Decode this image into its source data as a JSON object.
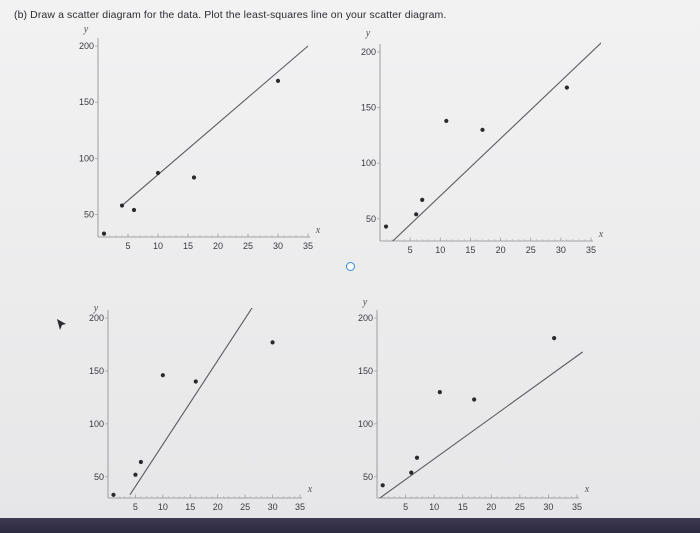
{
  "prompt": "(b) Draw a scatter diagram for the data. Plot the least-squares line on your scatter diagram.",
  "chart_data": [
    {
      "type": "scatter",
      "position": "top-left",
      "xlabel": "x",
      "ylabel": "y",
      "xlim": [
        0,
        35
      ],
      "ylim": [
        30,
        200
      ],
      "x_ticks": [
        5,
        10,
        15,
        20,
        25,
        30,
        35
      ],
      "y_ticks": [
        50,
        100,
        150,
        200
      ],
      "points": [
        [
          1,
          33
        ],
        [
          6,
          54
        ],
        [
          10,
          87
        ],
        [
          16,
          83
        ],
        [
          30,
          169
        ],
        [
          4,
          58
        ]
      ],
      "line": [
        [
          4,
          58
        ],
        [
          35,
          200
        ]
      ]
    },
    {
      "type": "scatter",
      "position": "top-right",
      "xlabel": "x",
      "ylabel": "y",
      "xlim": [
        0,
        35
      ],
      "ylim": [
        30,
        200
      ],
      "x_ticks": [
        5,
        10,
        15,
        20,
        25,
        30,
        35
      ],
      "y_ticks": [
        50,
        100,
        150,
        200
      ],
      "points": [
        [
          1,
          43
        ],
        [
          6,
          54
        ],
        [
          7,
          67
        ],
        [
          11,
          138
        ],
        [
          17,
          130
        ],
        [
          31,
          168
        ]
      ],
      "line": [
        [
          0,
          19
        ],
        [
          38,
          215
        ]
      ]
    },
    {
      "type": "scatter",
      "position": "bottom-left",
      "xlabel": "x",
      "ylabel": "y",
      "xlim": [
        0,
        35
      ],
      "ylim": [
        30,
        200
      ],
      "x_ticks": [
        5,
        10,
        15,
        20,
        25,
        30,
        35
      ],
      "y_ticks": [
        50,
        100,
        150,
        200
      ],
      "points": [
        [
          1,
          33
        ],
        [
          5,
          52
        ],
        [
          6,
          64
        ],
        [
          10,
          146
        ],
        [
          16,
          140
        ],
        [
          30,
          177
        ]
      ],
      "line": [
        [
          4,
          33
        ],
        [
          32,
          255
        ]
      ]
    },
    {
      "type": "scatter",
      "position": "bottom-right",
      "xlabel": "x",
      "ylabel": "y",
      "xlim": [
        0,
        35
      ],
      "ylim": [
        30,
        200
      ],
      "x_ticks": [
        5,
        10,
        15,
        20,
        25,
        30,
        35
      ],
      "y_ticks": [
        50,
        100,
        150,
        200
      ],
      "points": [
        [
          1,
          42
        ],
        [
          6,
          54
        ],
        [
          7,
          68
        ],
        [
          11,
          130
        ],
        [
          17,
          123
        ],
        [
          31,
          181
        ]
      ],
      "line": [
        [
          0,
          28
        ],
        [
          36,
          168
        ]
      ]
    }
  ]
}
